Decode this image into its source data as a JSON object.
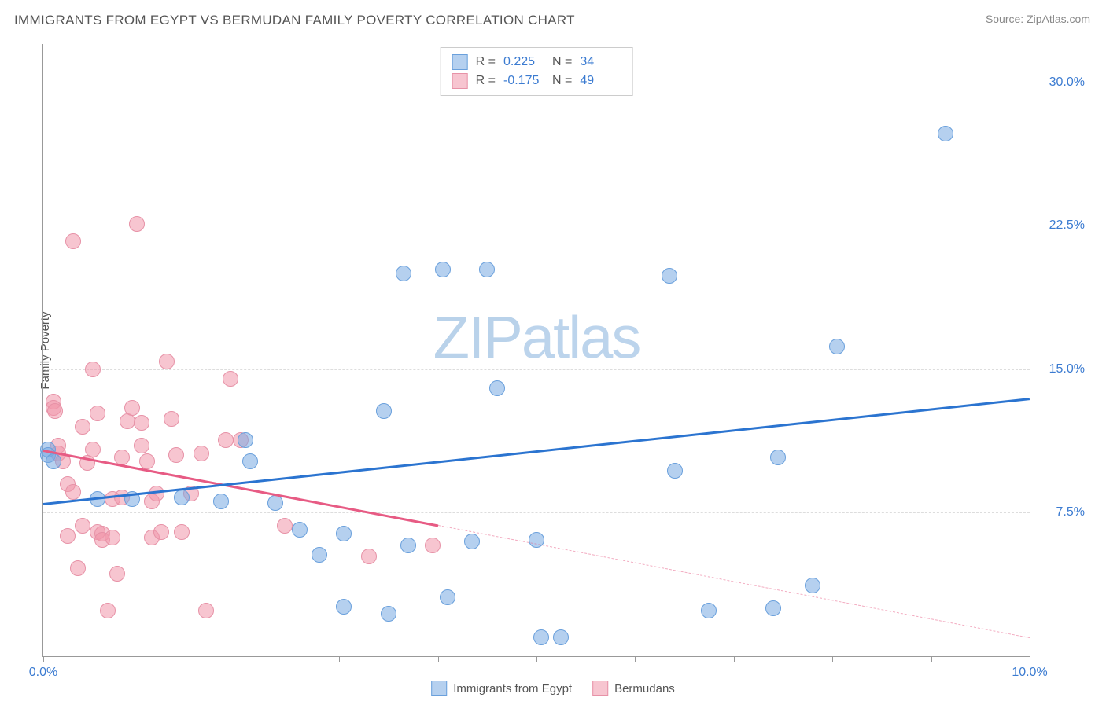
{
  "page": {
    "title": "IMMIGRANTS FROM EGYPT VS BERMUDAN FAMILY POVERTY CORRELATION CHART",
    "source_label": "Source: ZipAtlas.com",
    "ylabel": "Family Poverty",
    "watermark_bold": "ZIP",
    "watermark_rest": "atlas",
    "background_color": "#ffffff"
  },
  "axes": {
    "xlim": [
      0.0,
      10.0
    ],
    "ylim": [
      0.0,
      32.0
    ],
    "yticks": [
      7.5,
      15.0,
      22.5,
      30.0
    ],
    "ytick_labels": [
      "7.5%",
      "15.0%",
      "22.5%",
      "30.0%"
    ],
    "xticks": [
      0.0,
      1.0,
      2.0,
      3.0,
      4.0,
      5.0,
      6.0,
      7.0,
      8.0,
      9.0,
      10.0
    ],
    "xtick_labels": {
      "0": "0.0%",
      "10": "10.0%"
    },
    "grid_color": "#dddddd",
    "axis_color": "#999999",
    "tick_label_color": "#3b7bd1",
    "tick_fontsize": 16
  },
  "stats": {
    "s1_r": "0.225",
    "s1_n": "34",
    "s2_r": "-0.175",
    "s2_n": "49",
    "r_label": "R =",
    "n_label": "N ="
  },
  "legend": {
    "s1": "Immigrants from Egypt",
    "s2": "Bermudans"
  },
  "series": {
    "s1": {
      "name": "Immigrants from Egypt",
      "marker_fill": "rgba(120,170,225,0.55)",
      "marker_stroke": "#6aa0dc",
      "marker_radius": 10,
      "line_color": "#2b74d0",
      "line_width": 3,
      "trend": {
        "x1": 0.0,
        "y1": 8.0,
        "x2": 10.0,
        "y2": 13.5,
        "solid_until_x": 10.0
      },
      "points": [
        [
          0.05,
          10.8
        ],
        [
          0.05,
          10.5
        ],
        [
          0.1,
          10.2
        ],
        [
          0.55,
          8.2
        ],
        [
          0.9,
          8.2
        ],
        [
          1.4,
          8.3
        ],
        [
          1.8,
          8.1
        ],
        [
          2.05,
          11.3
        ],
        [
          2.1,
          10.2
        ],
        [
          2.35,
          8.0
        ],
        [
          2.6,
          6.6
        ],
        [
          2.8,
          5.3
        ],
        [
          3.05,
          6.4
        ],
        [
          3.05,
          2.6
        ],
        [
          3.45,
          12.8
        ],
        [
          3.5,
          2.2
        ],
        [
          3.65,
          20.0
        ],
        [
          3.7,
          5.8
        ],
        [
          4.05,
          20.2
        ],
        [
          4.1,
          3.1
        ],
        [
          4.35,
          6.0
        ],
        [
          4.5,
          20.2
        ],
        [
          4.6,
          14.0
        ],
        [
          5.0,
          6.1
        ],
        [
          5.05,
          1.0
        ],
        [
          5.25,
          1.0
        ],
        [
          6.35,
          19.9
        ],
        [
          6.4,
          9.7
        ],
        [
          6.75,
          2.4
        ],
        [
          7.4,
          2.5
        ],
        [
          7.45,
          10.4
        ],
        [
          7.8,
          3.7
        ],
        [
          8.05,
          16.2
        ],
        [
          9.15,
          27.3
        ]
      ]
    },
    "s2": {
      "name": "Bermudans",
      "marker_fill": "rgba(240,150,170,0.55)",
      "marker_stroke": "#e792a7",
      "marker_radius": 10,
      "line_color": "#e75b84",
      "line_width": 3,
      "trend": {
        "x1": 0.0,
        "y1": 10.8,
        "x2": 10.0,
        "y2": 1.0,
        "solid_until_x": 4.0
      },
      "points": [
        [
          0.1,
          13.3
        ],
        [
          0.1,
          13.0
        ],
        [
          0.12,
          12.8
        ],
        [
          0.15,
          11.0
        ],
        [
          0.15,
          10.6
        ],
        [
          0.2,
          10.2
        ],
        [
          0.25,
          9.0
        ],
        [
          0.25,
          6.3
        ],
        [
          0.3,
          21.7
        ],
        [
          0.3,
          8.6
        ],
        [
          0.35,
          4.6
        ],
        [
          0.4,
          12.0
        ],
        [
          0.4,
          6.8
        ],
        [
          0.45,
          10.1
        ],
        [
          0.5,
          15.0
        ],
        [
          0.5,
          10.8
        ],
        [
          0.55,
          12.7
        ],
        [
          0.55,
          6.5
        ],
        [
          0.6,
          6.4
        ],
        [
          0.6,
          6.1
        ],
        [
          0.65,
          2.4
        ],
        [
          0.7,
          8.2
        ],
        [
          0.7,
          6.2
        ],
        [
          0.75,
          4.3
        ],
        [
          0.8,
          10.4
        ],
        [
          0.8,
          8.3
        ],
        [
          0.85,
          12.3
        ],
        [
          0.9,
          13.0
        ],
        [
          0.95,
          22.6
        ],
        [
          1.0,
          11.0
        ],
        [
          1.0,
          12.2
        ],
        [
          1.05,
          10.2
        ],
        [
          1.1,
          6.2
        ],
        [
          1.1,
          8.1
        ],
        [
          1.15,
          8.5
        ],
        [
          1.2,
          6.5
        ],
        [
          1.25,
          15.4
        ],
        [
          1.3,
          12.4
        ],
        [
          1.35,
          10.5
        ],
        [
          1.4,
          6.5
        ],
        [
          1.5,
          8.5
        ],
        [
          1.6,
          10.6
        ],
        [
          1.65,
          2.4
        ],
        [
          1.85,
          11.3
        ],
        [
          1.9,
          14.5
        ],
        [
          2.0,
          11.3
        ],
        [
          2.45,
          6.8
        ],
        [
          3.3,
          5.2
        ],
        [
          3.95,
          5.8
        ]
      ]
    }
  }
}
